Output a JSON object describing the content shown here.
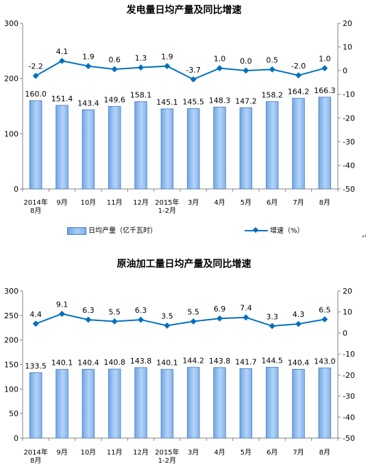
{
  "chart_data": [
    {
      "type": "bar+line",
      "title": "发电量日均产量及同比增速",
      "categories": [
        "2014年\n8月",
        "9月",
        "10月",
        "11月",
        "12月",
        "2015年\n1-2月",
        "3月",
        "4月",
        "5月",
        "6月",
        "7月",
        "8月"
      ],
      "bar_series": {
        "name": "日均产量（亿千瓦时）",
        "values": [
          160.0,
          151.4,
          143.4,
          149.6,
          158.1,
          145.1,
          145.5,
          148.3,
          147.2,
          158.2,
          164.2,
          166.3
        ]
      },
      "line_series": {
        "name": "增速（%）",
        "values": [
          -2.2,
          4.1,
          1.9,
          0.6,
          1.3,
          1.9,
          -3.7,
          1.0,
          0.0,
          0.5,
          -2.0,
          1.0
        ]
      },
      "y_left": {
        "ticks": [
          0,
          100,
          200,
          300
        ],
        "lim": [
          0,
          300
        ]
      },
      "y_right": {
        "ticks": [
          20,
          10,
          0,
          -10,
          -20,
          -30,
          -40,
          -50
        ],
        "lim": [
          -50,
          20
        ]
      },
      "legend": "bottom",
      "grid": false,
      "colors": {
        "bar": "#9dc3f2",
        "bar_edge": "#4a7ab8",
        "line": "#0070c0"
      }
    },
    {
      "type": "bar+line",
      "title": "原油加工量日均产量及同比增速",
      "categories": [
        "2014年\n8月",
        "9月",
        "10月",
        "11月",
        "12月",
        "2015年\n1-2月",
        "3月",
        "4月",
        "5月",
        "6月",
        "7月",
        "8月"
      ],
      "bar_series": {
        "values": [
          133.5,
          140.1,
          140.4,
          140.8,
          143.8,
          140.1,
          144.2,
          143.8,
          141.7,
          144.5,
          140.4,
          143.0
        ]
      },
      "line_series": {
        "values": [
          4.4,
          9.1,
          6.3,
          5.5,
          6.3,
          3.5,
          5.5,
          6.9,
          7.4,
          3.3,
          4.3,
          6.5
        ]
      },
      "y_left": {
        "ticks": [
          0,
          50,
          100,
          150,
          200,
          250,
          300
        ],
        "lim": [
          0,
          300
        ]
      },
      "y_right": {
        "ticks": [
          20,
          10,
          0,
          -10,
          -20,
          -30,
          -40,
          -50
        ],
        "lim": [
          -50,
          20
        ]
      },
      "legend": "bottom",
      "grid": false,
      "colors": {
        "bar": "#9dc3f2",
        "bar_edge": "#4a7ab8",
        "line": "#0070c0"
      }
    }
  ],
  "page_mark": "↵"
}
